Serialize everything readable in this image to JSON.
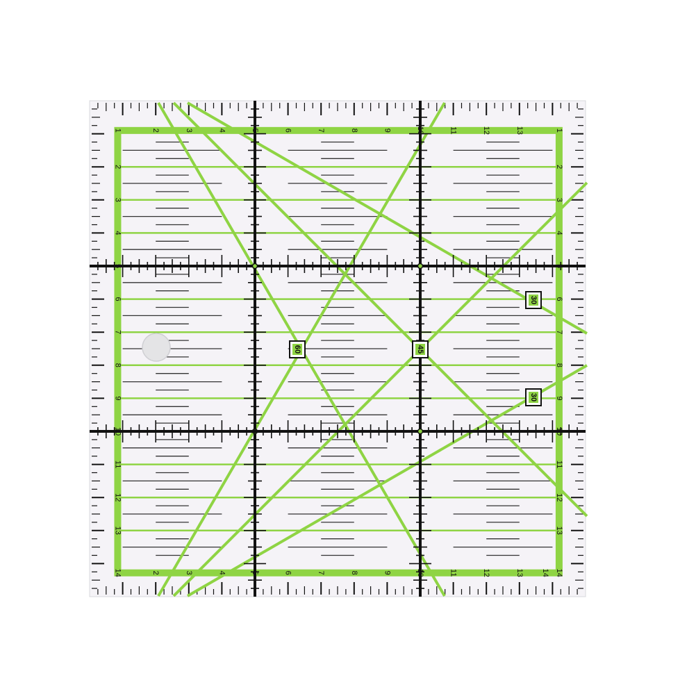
{
  "product": "quilting ruler",
  "units": "cm",
  "ruler_range_cm": [
    0,
    15
  ],
  "colors": {
    "accent_green": "#8fd444",
    "ink": "#111111",
    "acrylic": "#f5f3f7",
    "hole": "#e4e4e6"
  },
  "scales": {
    "top": [
      "1",
      "2",
      "3",
      "4",
      "5",
      "6",
      "7",
      "8",
      "9",
      "10",
      "11",
      "12",
      "13"
    ],
    "left": [
      "2",
      "3",
      "4",
      "5",
      "6",
      "7",
      "8",
      "9",
      "10",
      "11",
      "12",
      "13",
      "14"
    ],
    "right": [
      "1",
      "2",
      "3",
      "4",
      "5",
      "6",
      "7",
      "8",
      "9",
      "10",
      "11",
      "12",
      "13",
      "14"
    ],
    "bottom": [
      "2",
      "3",
      "4",
      "5",
      "6",
      "7",
      "8",
      "9",
      "10",
      "11",
      "12",
      "13",
      "14"
    ]
  },
  "angle_markers": [
    {
      "label": "60",
      "angle_deg": 60
    },
    {
      "label": "45",
      "angle_deg": 45
    },
    {
      "label": "30",
      "angle_deg": 30
    },
    {
      "label": "30",
      "angle_deg": 30
    }
  ],
  "hanging_hole": true
}
